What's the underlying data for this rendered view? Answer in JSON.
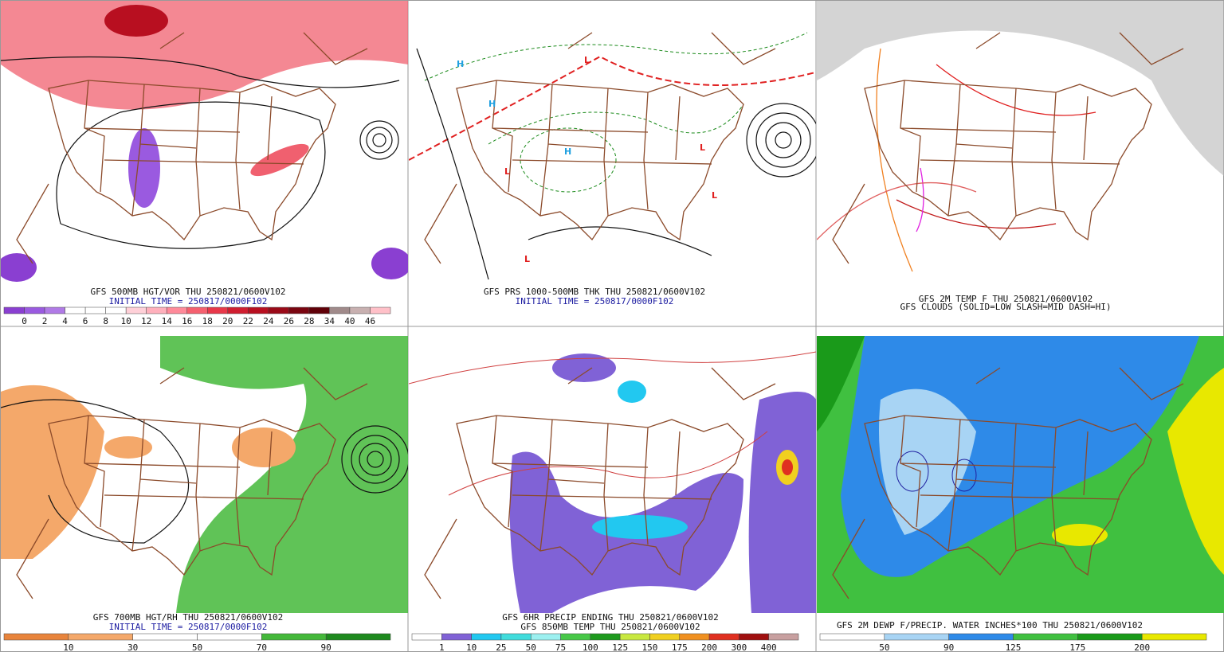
{
  "panels": [
    {
      "caption": [
        "GFS 500MB HGT/VOR THU 250821/0600V102",
        "INITIAL TIME = 250817/0000F102"
      ],
      "colorbar": {
        "colors": [
          "#8a3fd1",
          "#9a5ae0",
          "#b07ae6",
          "#ffffff",
          "#ffffff",
          "#ffffff",
          "#ffd0d8",
          "#ffb0bc",
          "#ff8a9a",
          "#f5606f",
          "#e8384a",
          "#d01e30",
          "#b80f20",
          "#9a0a18",
          "#7a0510",
          "#600008",
          "#a08a8a",
          "#c8b0b0",
          "#ffc0c8"
        ],
        "labels": [
          0,
          2,
          4,
          6,
          8,
          10,
          12,
          14,
          16,
          18,
          20,
          22,
          24,
          26,
          28,
          34,
          40,
          46
        ]
      }
    },
    {
      "caption": [
        "GFS PRS 1000-500MB THK THU 250821/0600V102",
        "INITIAL TIME = 250817/0000F102"
      ]
    },
    {
      "caption": [
        "GFS 2M TEMP F THU 250821/0600V102",
        "GFS CLOUDS (SOLID=LOW SLASH=MID DASH=HI)"
      ]
    },
    {
      "caption": [
        "GFS 700MB HGT/RH THU 250821/0600V102",
        "INITIAL TIME = 250817/0000F102"
      ],
      "colorbar": {
        "colors": [
          "#e8843c",
          "#f4a86a",
          "#ffffff",
          "#ffffff",
          "#44b83a",
          "#1e8a1e"
        ],
        "labels": [
          10,
          30,
          50,
          70,
          90
        ]
      }
    },
    {
      "caption": [
        "GFS 6HR PRECIP ENDING THU 250821/0600V102",
        "GFS 850MB TEMP THU 250821/0600V102"
      ],
      "colorbar": {
        "colors": [
          "#ffffff",
          "#8062d6",
          "#22c8f0",
          "#40dcdc",
          "#9cf0f0",
          "#48c848",
          "#1e9a1e",
          "#c8e840",
          "#f0d020",
          "#f09020",
          "#e03020",
          "#a01010",
          "#c8a0a0"
        ],
        "labels": [
          1,
          10,
          25,
          50,
          75,
          100,
          125,
          150,
          175,
          200,
          300,
          400
        ]
      }
    },
    {
      "caption": [
        "GFS 2M DEWP F/PRECIP. WATER INCHES*100 THU 250821/0600V102"
      ],
      "colorbar": {
        "colors": [
          "#ffffff",
          "#a8d4f4",
          "#2e8ae8",
          "#40c040",
          "#1a9a1a",
          "#e8e800"
        ],
        "labels": [
          50,
          90,
          125,
          175,
          200
        ]
      }
    }
  ]
}
